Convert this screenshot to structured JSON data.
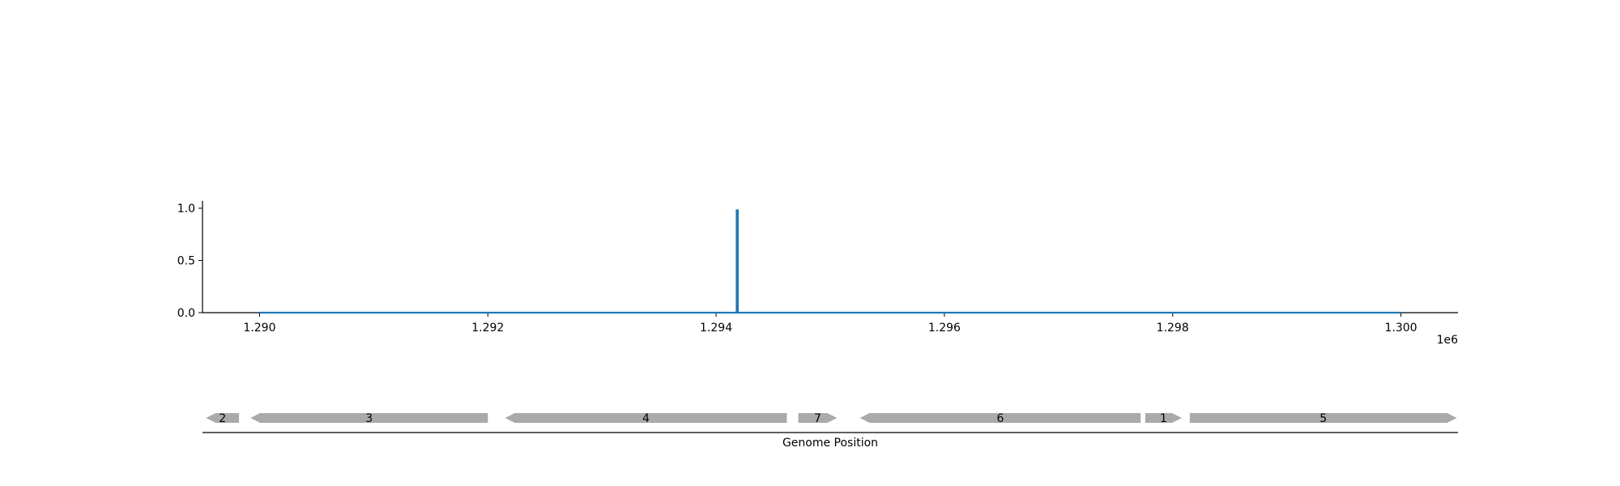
{
  "chart_data": {
    "type": "line",
    "xlabel": "",
    "ylabel": "",
    "x_offset_label": "1e6",
    "xlim": [
      1289500,
      1300500
    ],
    "ylim": [
      0,
      1.07
    ],
    "x_ticks": [
      1290000,
      1292000,
      1294000,
      1296000,
      1298000,
      1300000
    ],
    "x_tick_labels": [
      "1.290",
      "1.292",
      "1.294",
      "1.296",
      "1.298",
      "1.300"
    ],
    "y_ticks": [
      0,
      0.5,
      1.0
    ],
    "y_tick_labels": [
      "0.0",
      "0.5",
      "1.0"
    ],
    "series": [
      {
        "color": "#1f77b4",
        "points": [
          [
            1290000,
            0
          ],
          [
            1294180,
            0
          ],
          [
            1294180,
            0.98
          ],
          [
            1294190,
            0.98
          ],
          [
            1294190,
            0
          ],
          [
            1300000,
            0
          ]
        ]
      }
    ],
    "grid": false
  },
  "gene_track": {
    "axis_label": "Genome Position",
    "gene_color": "#aaaaaa",
    "genes": [
      {
        "label": "2",
        "start": 1289530,
        "end": 1289820,
        "strand": "-"
      },
      {
        "label": "3",
        "start": 1289920,
        "end": 1292000,
        "strand": "-"
      },
      {
        "label": "4",
        "start": 1292150,
        "end": 1294620,
        "strand": "-"
      },
      {
        "label": "7",
        "start": 1294720,
        "end": 1295060,
        "strand": "+"
      },
      {
        "label": "6",
        "start": 1295260,
        "end": 1297720,
        "strand": "-"
      },
      {
        "label": "1",
        "start": 1297760,
        "end": 1298080,
        "strand": "+"
      },
      {
        "label": "5",
        "start": 1298150,
        "end": 1300490,
        "strand": "+"
      }
    ]
  }
}
